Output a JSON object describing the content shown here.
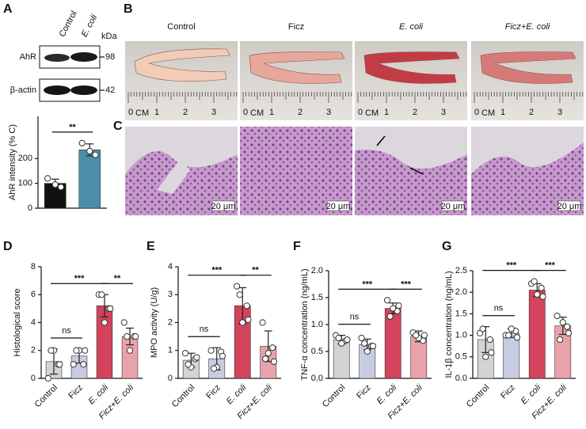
{
  "chart_data": [
    {
      "type": "bar",
      "label": "A",
      "ylabel": "AhR intensity (% C)",
      "categories": [
        null,
        null
      ],
      "colors": [
        "#111111",
        "#4b8eab"
      ],
      "values": [
        100,
        235
      ],
      "errors": [
        17,
        24
      ],
      "points": [
        [
          120,
          85,
          95
        ],
        [
          262,
          215,
          230
        ]
      ],
      "ylim": [
        0,
        370
      ],
      "yticks": [
        0,
        100,
        200
      ],
      "comparisons": [
        {
          "pair": [
            0,
            1
          ],
          "label": "**"
        }
      ]
    },
    {
      "type": "bar",
      "label": "D",
      "ylabel": "Histological score",
      "categories": [
        "Control",
        "Ficz",
        "E. coli",
        "Ficz+E. coli"
      ],
      "colors": [
        "#d3d3d3",
        "#c8cce2",
        "#d3435c",
        "#e9a2aa"
      ],
      "values": [
        1.2,
        1.6,
        5.2,
        3.0
      ],
      "errors": [
        0.9,
        0.5,
        0.8,
        0.6
      ],
      "points": [
        [
          0,
          1,
          2,
          2,
          1
        ],
        [
          1,
          1,
          2,
          2,
          2
        ],
        [
          6,
          5,
          4,
          6,
          5
        ],
        [
          4,
          3,
          2,
          3,
          3
        ]
      ],
      "ylim": [
        0,
        8
      ],
      "yticks": [
        0,
        2,
        4,
        6,
        8
      ],
      "comparisons": [
        {
          "pair": [
            0,
            1
          ],
          "label": "ns"
        },
        {
          "pair": [
            0,
            2
          ],
          "label": "***"
        },
        {
          "pair": [
            2,
            3
          ],
          "label": "**"
        }
      ]
    },
    {
      "type": "bar",
      "label": "E",
      "ylabel": "MPO activity (U/g)",
      "categories": [
        "Control",
        "Ficz",
        "E. coli",
        "Ficz+E. coli"
      ],
      "colors": [
        "#d3d3d3",
        "#c8cce2",
        "#d3435c",
        "#e9a2aa"
      ],
      "values": [
        0.65,
        0.7,
        2.6,
        1.15
      ],
      "errors": [
        0.25,
        0.4,
        0.65,
        0.55
      ],
      "points": [
        [
          0.9,
          0.7,
          0.4,
          0.5,
          0.75
        ],
        [
          1.0,
          0.95,
          0.4,
          0.35,
          0.8
        ],
        [
          3.3,
          2.6,
          2.0,
          3.0,
          2.1
        ],
        [
          2.0,
          1.1,
          0.9,
          0.7,
          0.6
        ]
      ],
      "ylim": [
        0,
        4
      ],
      "yticks": [
        0,
        1,
        2,
        3,
        4
      ],
      "comparisons": [
        {
          "pair": [
            0,
            1
          ],
          "label": "ns"
        },
        {
          "pair": [
            0,
            2
          ],
          "label": "***"
        },
        {
          "pair": [
            2,
            3
          ],
          "label": "**"
        }
      ]
    },
    {
      "type": "bar",
      "label": "F",
      "ylabel": "TNF-α concentration (ng/mL)",
      "categories": [
        "Control",
        "Ficz",
        "E. coli",
        "Ficz+E. coli"
      ],
      "colors": [
        "#d3d3d3",
        "#c8cce2",
        "#d3435c",
        "#e9a2aa"
      ],
      "values": [
        0.72,
        0.63,
        1.3,
        0.78
      ],
      "errors": [
        0.08,
        0.1,
        0.1,
        0.1
      ],
      "points": [
        [
          0.8,
          0.7,
          0.65,
          0.75,
          0.72
        ],
        [
          0.75,
          0.6,
          0.5,
          0.65,
          0.6
        ],
        [
          1.45,
          1.25,
          1.3,
          1.15,
          1.35
        ],
        [
          0.85,
          0.7,
          0.75,
          0.8,
          0.8
        ]
      ],
      "ylim": [
        0,
        2
      ],
      "yticks": [
        {
          "value": 0,
          "label": "0.0"
        },
        {
          "value": 0.5,
          "label": "0.5"
        },
        {
          "value": 1,
          "label": "1.0"
        },
        {
          "value": 1.5,
          "label": "1.5"
        },
        {
          "value": 2,
          "label": "2.0"
        }
      ],
      "comparisons": [
        {
          "pair": [
            0,
            1
          ],
          "label": "ns"
        },
        {
          "pair": [
            0,
            2
          ],
          "label": "***"
        },
        {
          "pair": [
            2,
            3
          ],
          "label": "***"
        }
      ]
    },
    {
      "type": "bar",
      "label": "G",
      "ylabel": "IL-1β concentration (ng/mL)",
      "categories": [
        "Control",
        "Ficz",
        "E. coli",
        "Ficz+E. coli"
      ],
      "colors": [
        "#d3d3d3",
        "#c8cce2",
        "#d3435c",
        "#e9a2aa"
      ],
      "values": [
        0.9,
        1.05,
        2.05,
        1.22
      ],
      "errors": [
        0.3,
        0.1,
        0.15,
        0.2
      ],
      "points": [
        [
          1.05,
          0.9,
          0.5,
          1.15,
          0.6
        ],
        [
          1.0,
          1.1,
          1.15,
          1.0,
          0.95
        ],
        [
          2.2,
          2.1,
          1.95,
          2.25,
          1.9
        ],
        [
          1.45,
          1.2,
          1.3,
          0.9,
          1.05
        ]
      ],
      "ylim": [
        0,
        2.5
      ],
      "yticks": [
        {
          "value": 0,
          "label": "0.0"
        },
        {
          "value": 0.5,
          "label": "0.5"
        },
        {
          "value": 1,
          "label": "1.0"
        },
        {
          "value": 1.5,
          "label": "1.5"
        },
        {
          "value": 2,
          "label": "2.0"
        },
        {
          "value": 2.5,
          "label": "2.5"
        }
      ],
      "comparisons": [
        {
          "pair": [
            0,
            1
          ],
          "label": "ns"
        },
        {
          "pair": [
            0,
            2
          ],
          "label": "***"
        },
        {
          "pair": [
            2,
            3
          ],
          "label": "***"
        }
      ]
    }
  ],
  "blot": {
    "lanes": [
      "Control",
      "E. coli"
    ],
    "unit": "kDa",
    "bands": [
      {
        "name": "AhR",
        "kda": 98
      },
      {
        "name": "β-actin",
        "kda": 42
      }
    ]
  },
  "photos": {
    "label": "B",
    "captions": [
      "Control",
      "Ficz",
      "E. coli",
      "Ficz+E. coli"
    ],
    "ruler": [
      "0",
      "CM",
      "1",
      "2",
      "3"
    ]
  },
  "histology": {
    "label": "C",
    "scale_bar": "20 μm"
  }
}
